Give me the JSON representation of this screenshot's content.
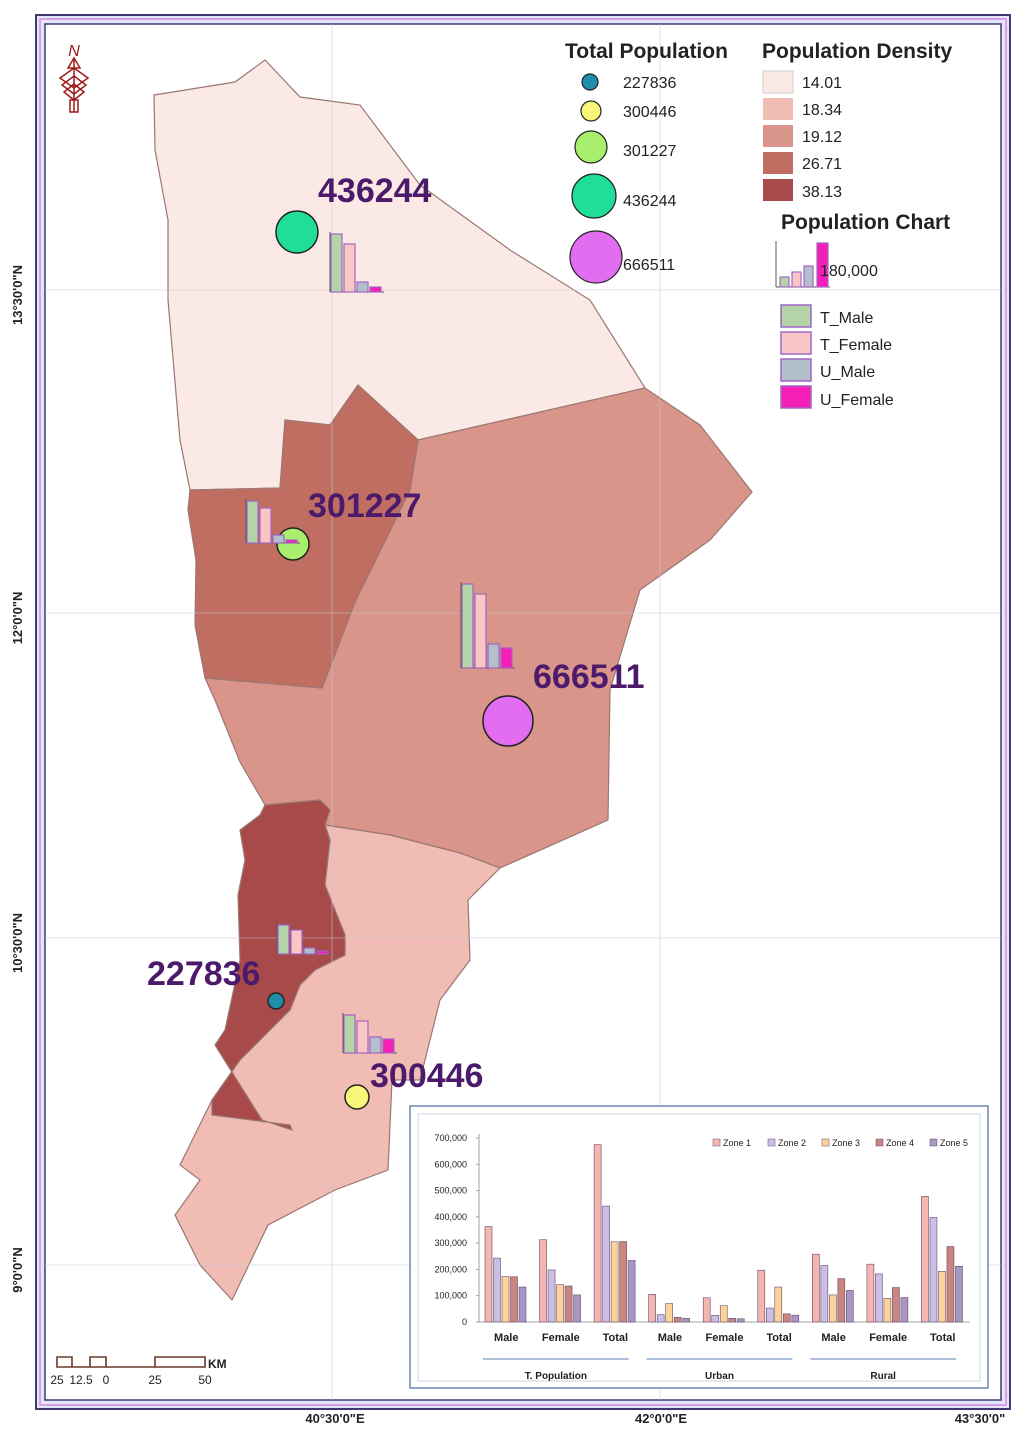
{
  "legend": {
    "total_population_title": "Total Population",
    "total_population_items": [
      "227836",
      "300446",
      "301227",
      "436244",
      "666511"
    ],
    "population_density_title": "Population Density",
    "density_items": [
      "14.01",
      "18.34",
      "19.12",
      "26.71",
      "38.13"
    ],
    "density_colors": [
      "#fbe9e6",
      "#f0bcb3",
      "#d9958a",
      "#c16e62",
      "#a84a49"
    ],
    "circle_colors": [
      "#1e8eaa",
      "#f9f77a",
      "#a8ef6e",
      "#21dd9a",
      "#e36df0"
    ],
    "population_chart_title": "Population Chart",
    "population_chart_value": "180,000",
    "chart_series": [
      "T_Male",
      "T_Female",
      "U_Male",
      "U_Female"
    ],
    "chart_series_colors": [
      "#b4d3a8",
      "#f9c6c6",
      "#b3bfcc",
      "#f31fb6"
    ]
  },
  "map_labels": [
    "436244",
    "301227",
    "666511",
    "227836",
    "300446"
  ],
  "coordinates": {
    "lat": [
      "13°30'0\"N",
      "12°0'0\"N",
      "10°30'0\"N",
      "9°0'0\"N"
    ],
    "lon": [
      "40°30'0\"E",
      "42°0'0\"E",
      "43°30'0\""
    ]
  },
  "north_arrow": "N",
  "scale_bar": {
    "unit": "KM",
    "ticks": [
      "25",
      "12.5",
      "0",
      "25",
      "50"
    ]
  },
  "colors": {
    "label_purple": "#4b1a6b",
    "zone_bar_colors": [
      "#f4b6b1",
      "#cbbfe6",
      "#fcd49a",
      "#c9857f",
      "#a797c3"
    ]
  },
  "chart_data": {
    "type": "bar",
    "categories": [
      "Male",
      "Female",
      "Total",
      "Male",
      "Female",
      "Total",
      "Male",
      "Female",
      "Total"
    ],
    "groups": [
      "T. Population",
      "Urban",
      "Rural"
    ],
    "ylim": [
      0,
      700000
    ],
    "yticks": [
      "0",
      "100,000",
      "200,000",
      "300,000",
      "400,000",
      "500,000",
      "600,000",
      "700,000"
    ],
    "series": [
      {
        "name": "Zone 1",
        "values": [
          363000,
          313000,
          675000,
          105000,
          92000,
          197000,
          258000,
          220000,
          478000
        ]
      },
      {
        "name": "Zone 2",
        "values": [
          243000,
          198000,
          441000,
          28000,
          25000,
          53000,
          215000,
          183000,
          398000
        ]
      },
      {
        "name": "Zone 3",
        "values": [
          173000,
          142000,
          305000,
          70000,
          62000,
          133000,
          103000,
          90000,
          193000
        ]
      },
      {
        "name": "Zone 4",
        "values": [
          172000,
          137000,
          306000,
          18000,
          14000,
          31000,
          165000,
          131000,
          287000
        ]
      },
      {
        "name": "Zone 5",
        "values": [
          133000,
          103000,
          234000,
          14000,
          12000,
          26000,
          120000,
          93000,
          212000
        ]
      }
    ]
  }
}
